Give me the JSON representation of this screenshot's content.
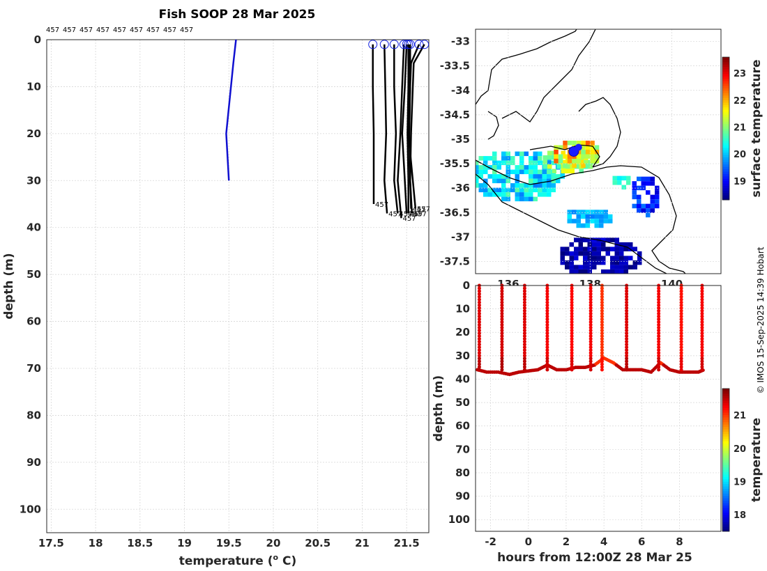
{
  "title": "Fish SOOP 28 Mar 2025",
  "credit": "© IMOS 15-Sep-2025 14:39 Hobart",
  "colors": {
    "blue_profile": "#1010d0",
    "black_profile": "#000000"
  },
  "chart_data": [
    {
      "type": "line",
      "name": "temperature-depth-profiles",
      "xlabel": "temperature (o C)",
      "ylabel": "depth (m)",
      "xlim": [
        17.45,
        21.75
      ],
      "ylim": [
        105,
        0
      ],
      "xticks": [
        "17.5",
        "18",
        "18.5",
        "19",
        "19.5",
        "20",
        "20.5",
        "21",
        "21.5"
      ],
      "yticks": [
        "0",
        "10",
        "20",
        "30",
        "40",
        "50",
        "60",
        "70",
        "80",
        "90",
        "100"
      ],
      "grid": true,
      "top_labels": [
        "457",
        "457",
        "457",
        "457",
        "457",
        "457",
        "457",
        "457",
        "457"
      ],
      "end_label": "457",
      "blue_profile": {
        "x": [
          19.58,
          19.55,
          19.47,
          19.5
        ],
        "y": [
          0,
          5,
          20,
          30
        ]
      },
      "black_profiles": [
        {
          "start_t": 21.12,
          "x": [
            21.12,
            21.12,
            21.13,
            21.13,
            21.13
          ],
          "y": [
            1,
            10,
            20,
            30,
            35
          ]
        },
        {
          "start_t": 21.25,
          "x": [
            21.25,
            21.26,
            21.27,
            21.25,
            21.28
          ],
          "y": [
            1,
            10,
            20,
            30,
            37
          ]
        },
        {
          "start_t": 21.36,
          "x": [
            21.36,
            21.36,
            21.38,
            21.36,
            21.4
          ],
          "y": [
            1,
            10,
            20,
            30,
            37
          ]
        },
        {
          "start_t": 21.47,
          "x": [
            21.47,
            21.45,
            21.43,
            21.4,
            21.44
          ],
          "y": [
            1,
            10,
            20,
            30,
            38
          ]
        },
        {
          "start_t": 21.5,
          "x": [
            21.5,
            21.48,
            21.45,
            21.48,
            21.5
          ],
          "y": [
            1,
            10,
            20,
            30,
            37
          ]
        },
        {
          "start_t": 21.52,
          "x": [
            21.52,
            21.52,
            21.51,
            21.52,
            21.52
          ],
          "y": [
            1,
            10,
            20,
            30,
            37
          ]
        },
        {
          "start_t": 21.54,
          "x": [
            21.54,
            21.54,
            21.53,
            21.54,
            21.55
          ],
          "y": [
            1,
            10,
            20,
            30,
            36
          ]
        },
        {
          "start_t": 21.64,
          "x": [
            21.64,
            21.55,
            21.52,
            21.57,
            21.6
          ],
          "y": [
            1,
            5,
            20,
            30,
            36
          ]
        },
        {
          "start_t": 21.7,
          "x": [
            21.7,
            21.58,
            21.55,
            21.54,
            21.56
          ],
          "y": [
            1,
            5,
            20,
            30,
            37
          ]
        }
      ]
    },
    {
      "type": "heatmap",
      "name": "surface-temperature-map",
      "colorbar_label": "surface temperature",
      "colorbar_range": [
        18.3,
        23.6
      ],
      "colorbar_ticks": [
        "19",
        "20",
        "21",
        "22",
        "23"
      ],
      "xlim": [
        135.2,
        141.2
      ],
      "ylim": [
        -37.75,
        -32.75
      ],
      "yticks": [
        "-33",
        "-33.5",
        "-34",
        "-34.5",
        "-35",
        "-35.5",
        "-36",
        "-36.5",
        "-37",
        "-37.5"
      ],
      "xticks": [
        "136",
        "138",
        "140"
      ],
      "grid": true,
      "vessel_position": {
        "lon": 137.6,
        "lat": -35.25
      }
    },
    {
      "type": "scatter",
      "name": "depth-time-section",
      "xlabel": "hours from 12:00Z 28 Mar 25",
      "ylabel": "depth (m)",
      "colorbar_label": "temperature",
      "colorbar_range": [
        17.5,
        21.8
      ],
      "colorbar_ticks": [
        "18",
        "19",
        "20",
        "21"
      ],
      "xlim": [
        -2.8,
        10.2
      ],
      "ylim": [
        105,
        0
      ],
      "xticks": [
        "-2",
        "0",
        "2",
        "4",
        "6",
        "8"
      ],
      "yticks": [
        "0",
        "10",
        "20",
        "30",
        "40",
        "50",
        "60",
        "70",
        "80",
        "90",
        "100"
      ],
      "grid": true,
      "casts": [
        {
          "hour": -2.6,
          "temp": 21.4
        },
        {
          "hour": -1.4,
          "temp": 21.45
        },
        {
          "hour": -0.2,
          "temp": 21.4
        },
        {
          "hour": 1.0,
          "temp": 21.3
        },
        {
          "hour": 2.3,
          "temp": 21.25
        },
        {
          "hour": 3.3,
          "temp": 21.3
        },
        {
          "hour": 3.9,
          "temp": 21.05
        },
        {
          "hour": 5.2,
          "temp": 21.4
        },
        {
          "hour": 6.9,
          "temp": 21.3
        },
        {
          "hour": 8.1,
          "temp": 21.2
        },
        {
          "hour": 9.2,
          "temp": 21.3
        }
      ],
      "bottom_track": {
        "hours": [
          -2.7,
          -2.2,
          -1.6,
          -1.0,
          -0.5,
          0.0,
          0.5,
          1.0,
          1.5,
          2.0,
          2.5,
          3.0,
          3.5,
          4.0,
          4.5,
          5.0,
          5.5,
          6.0,
          6.5,
          7.0,
          7.5,
          8.0,
          8.5,
          9.0,
          9.3
        ],
        "depths": [
          36,
          37,
          37,
          38,
          37,
          36.5,
          36,
          34,
          36,
          36,
          35,
          35,
          34,
          31,
          33,
          36,
          36,
          36,
          37,
          33,
          36,
          37,
          37,
          37,
          36
        ]
      }
    }
  ]
}
